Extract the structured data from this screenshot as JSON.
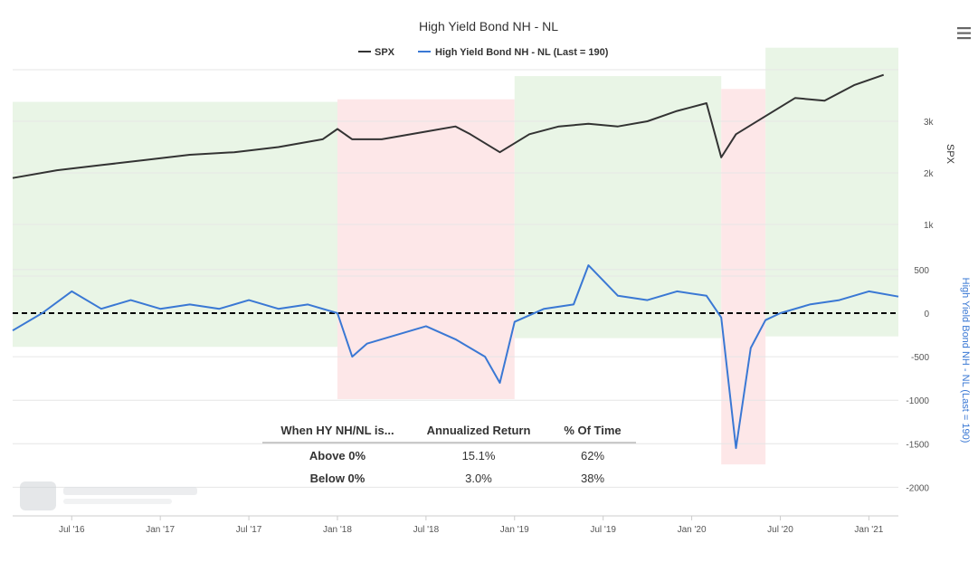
{
  "chart_data": {
    "type": "line",
    "title": "High Yield Bond NH - NL",
    "legend": {
      "position": "top-center",
      "entries": [
        {
          "name": "SPX",
          "color": "#333333"
        },
        {
          "name": "High Yield Bond NH - NL (Last = 190)",
          "color": "#3a78d4"
        }
      ]
    },
    "x_ticks": [
      "Jul '16",
      "Jan '17",
      "Jul '17",
      "Jan '18",
      "Jul '18",
      "Jan '19",
      "Jul '19",
      "Jan '20",
      "Jul '20",
      "Jan '21"
    ],
    "x_range": [
      "2016-03",
      "2021-03"
    ],
    "y_axes": {
      "spx": {
        "title": "SPX",
        "ticks": [
          "1k",
          "2k",
          "3k"
        ],
        "range": [
          0,
          4000
        ],
        "color": "#333333"
      },
      "hy": {
        "title": "High Yield Bond NH - NL (Last = 190)",
        "ticks": [
          "500",
          "0",
          "-500",
          "-1000",
          "-1500",
          "-2000"
        ],
        "range": [
          -2000,
          500
        ],
        "color": "#3a78d4"
      }
    },
    "zero_line": {
      "value": 0,
      "style": "dashed",
      "color": "#000000"
    },
    "regimes": [
      {
        "start": "2016-03",
        "end": "2018-01",
        "state": "above",
        "color": "#e9f5e6"
      },
      {
        "start": "2018-01",
        "end": "2019-01",
        "state": "below",
        "color": "#fde7e8"
      },
      {
        "start": "2019-01",
        "end": "2020-03",
        "state": "above",
        "color": "#e9f5e6"
      },
      {
        "start": "2020-03",
        "end": "2020-06",
        "state": "below",
        "color": "#fde7e8"
      },
      {
        "start": "2020-06",
        "end": "2021-03",
        "state": "above",
        "color": "#e9f5e6"
      }
    ],
    "series": [
      {
        "name": "SPX",
        "color": "#333333",
        "axis": "spx",
        "x": [
          "2016-03",
          "2016-06",
          "2016-09",
          "2016-12",
          "2017-03",
          "2017-06",
          "2017-09",
          "2017-12",
          "2018-01",
          "2018-02",
          "2018-04",
          "2018-07",
          "2018-09",
          "2018-10",
          "2018-12",
          "2019-02",
          "2019-04",
          "2019-06",
          "2019-08",
          "2019-10",
          "2019-12",
          "2020-02",
          "2020-03",
          "2020-04",
          "2020-06",
          "2020-08",
          "2020-10",
          "2020-12",
          "2021-02"
        ],
        "values": [
          1900,
          2050,
          2150,
          2250,
          2350,
          2400,
          2500,
          2650,
          2850,
          2650,
          2650,
          2800,
          2900,
          2750,
          2400,
          2750,
          2900,
          2950,
          2900,
          3000,
          3200,
          3350,
          2300,
          2750,
          3100,
          3450,
          3400,
          3700,
          3900
        ]
      },
      {
        "name": "High Yield Bond NH - NL (Last = 190)",
        "color": "#3a78d4",
        "axis": "hy",
        "x": [
          "2016-03",
          "2016-05",
          "2016-07",
          "2016-09",
          "2016-11",
          "2017-01",
          "2017-03",
          "2017-05",
          "2017-07",
          "2017-09",
          "2017-11",
          "2018-01",
          "2018-02",
          "2018-03",
          "2018-05",
          "2018-07",
          "2018-09",
          "2018-11",
          "2018-12",
          "2019-01",
          "2019-03",
          "2019-05",
          "2019-06",
          "2019-08",
          "2019-10",
          "2019-12",
          "2020-02",
          "2020-03",
          "2020-04",
          "2020-05",
          "2020-06",
          "2020-07",
          "2020-09",
          "2020-11",
          "2021-01",
          "2021-03"
        ],
        "values": [
          -200,
          0,
          250,
          50,
          150,
          50,
          100,
          50,
          150,
          50,
          100,
          0,
          -500,
          -350,
          -250,
          -150,
          -300,
          -500,
          -800,
          -100,
          50,
          100,
          550,
          200,
          150,
          250,
          200,
          -50,
          -1550,
          -400,
          -80,
          0,
          100,
          150,
          250,
          190
        ]
      }
    ]
  },
  "stats_table": {
    "headers": [
      "When HY NH/NL is...",
      "Annualized Return",
      "% Of Time"
    ],
    "rows": [
      {
        "label": "Above 0%",
        "ret": "15.1%",
        "time": "62%"
      },
      {
        "label": "Below 0%",
        "ret": "3.0%",
        "time": "38%"
      }
    ]
  },
  "menu_icon": "hamburger-menu-icon"
}
